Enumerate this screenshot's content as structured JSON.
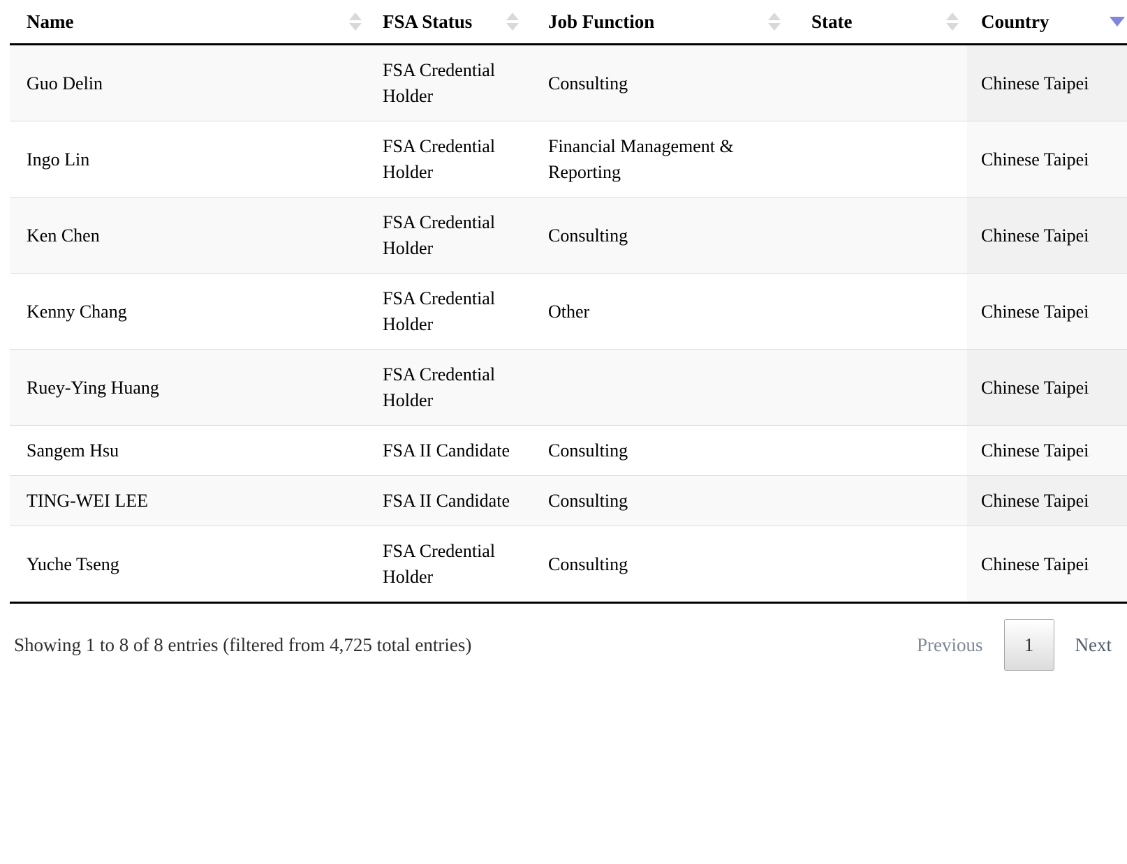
{
  "table": {
    "columns": [
      {
        "key": "name",
        "label": "Name",
        "sort": "both"
      },
      {
        "key": "fsa-status",
        "label": "FSA Status",
        "sort": "both"
      },
      {
        "key": "job-function",
        "label": "Job Function",
        "sort": "both"
      },
      {
        "key": "state",
        "label": "State",
        "sort": "both"
      },
      {
        "key": "country",
        "label": "Country",
        "sort": "desc"
      }
    ],
    "rows": [
      {
        "name": "Guo Delin",
        "fsa_status": "FSA Credential Holder",
        "job_function": "Consulting",
        "state": "",
        "country": "Chinese Taipei"
      },
      {
        "name": "Ingo Lin",
        "fsa_status": "FSA Credential Holder",
        "job_function": "Financial Management & Reporting",
        "state": "",
        "country": "Chinese Taipei"
      },
      {
        "name": "Ken Chen",
        "fsa_status": "FSA Credential Holder",
        "job_function": "Consulting",
        "state": "",
        "country": "Chinese Taipei"
      },
      {
        "name": "Kenny Chang",
        "fsa_status": "FSA Credential Holder",
        "job_function": "Other",
        "state": "",
        "country": "Chinese Taipei"
      },
      {
        "name": "Ruey-Ying Huang",
        "fsa_status": "FSA Credential Holder",
        "job_function": "",
        "state": "",
        "country": "Chinese Taipei"
      },
      {
        "name": "Sangem Hsu",
        "fsa_status": "FSA II Candidate",
        "job_function": "Consulting",
        "state": "",
        "country": "Chinese Taipei"
      },
      {
        "name": "TING-WEI LEE",
        "fsa_status": "FSA II Candidate",
        "job_function": "Consulting",
        "state": "",
        "country": "Chinese Taipei"
      },
      {
        "name": "Yuche Tseng",
        "fsa_status": "FSA Credential Holder",
        "job_function": "Consulting",
        "state": "",
        "country": "Chinese Taipei"
      }
    ]
  },
  "footer": {
    "info": "Showing 1 to 8 of 8 entries (filtered from 4,725 total entries)",
    "pagination": {
      "previous_label": "Previous",
      "current_page": "1",
      "next_label": "Next"
    }
  },
  "colors": {
    "header_border": "#000000",
    "row_stripe": "#f9f9f9",
    "sorted_odd": "#f1f1f1",
    "sorted_even": "#f9f9f9",
    "row_divider": "#dddddd",
    "sort_inactive": "#d9d9d9",
    "sort_active": "#8086dd",
    "text": "#000000",
    "footer_text": "#2f2f2f",
    "prev_disabled": "#7d8796",
    "next_link": "#4f5c69",
    "button_border": "#a6a6a6",
    "button_gradient_end": "#dcdcdc"
  }
}
